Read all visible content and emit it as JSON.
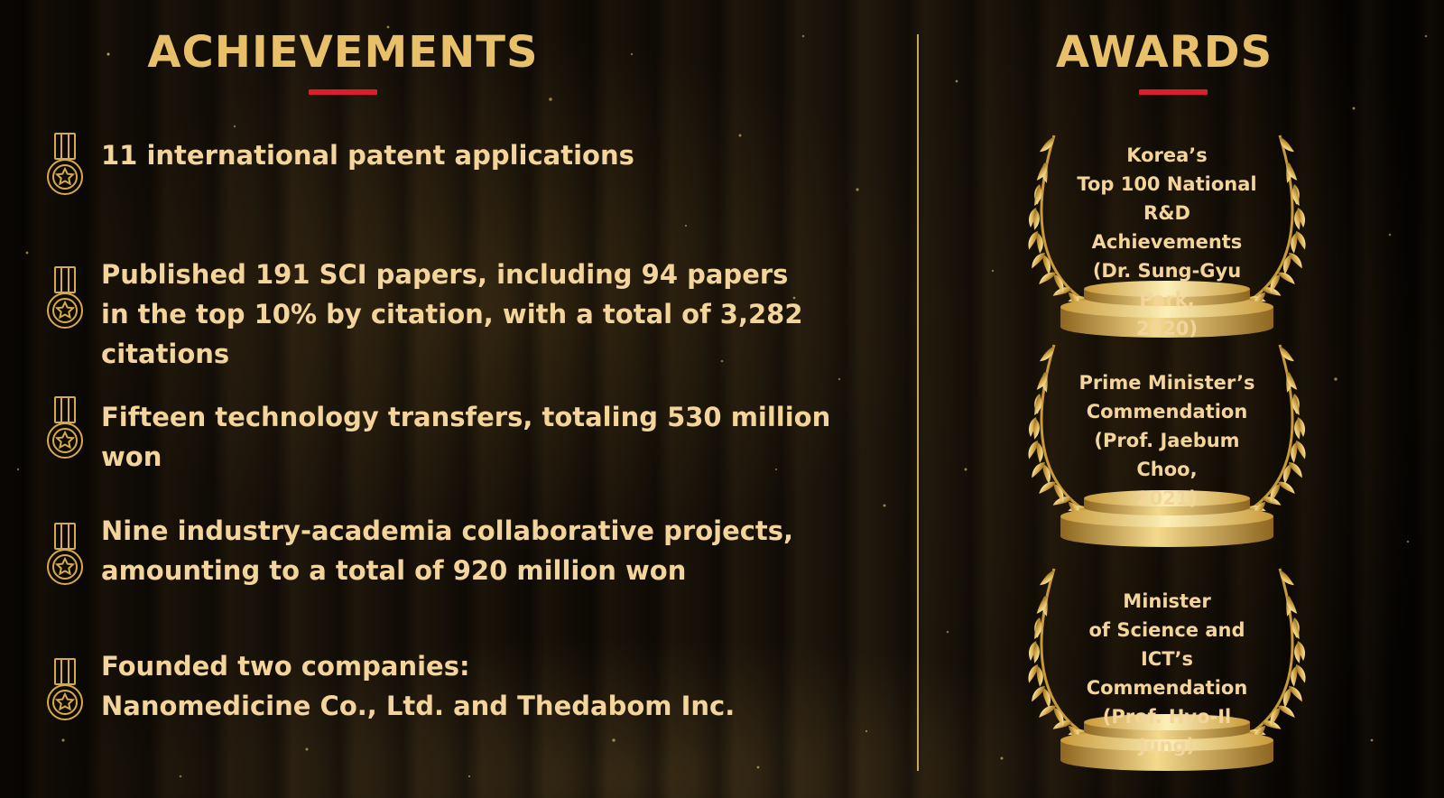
{
  "achievements": {
    "title": "ACHIEVEMENTS",
    "items": [
      {
        "icon": "medal-icon",
        "text": "11 international patent applications"
      },
      {
        "icon": "medal-icon",
        "text": "Published 191 SCI papers, including 94 papers\nin the top 10% by citation, with a total of 3,282 citations"
      },
      {
        "icon": "medal-icon",
        "text": "Fifteen technology transfers, totaling 530 million won"
      },
      {
        "icon": "medal-icon",
        "text": "Nine industry-academia collaborative projects,\namounting to a total of 920 million won"
      },
      {
        "icon": "medal-icon",
        "text": "Founded two companies:\nNanomedicine Co., Ltd. and Thedabom Inc."
      }
    ]
  },
  "awards": {
    "title": "AWARDS",
    "items": [
      {
        "icon": "laurel-podium-icon",
        "text": "Korea’s\nTop 100 National\nR&D Achievements\n(Dr. Sung-Gyu Park,\n2020)"
      },
      {
        "icon": "laurel-podium-icon",
        "text": "Prime Minister’s\nCommendation\n(Prof. Jaebum Choo,\n2021)"
      },
      {
        "icon": "laurel-podium-icon",
        "text": "Minister\nof Science and ICT’s\nCommendation\n(Prof. Hyo-Il Jung)"
      }
    ]
  },
  "colors": {
    "gold_heading": "#E8C06A",
    "gold_text": "#F3D49A",
    "accent_red": "#D91E2E",
    "divider": "#C9A85E",
    "background": "#060402"
  }
}
